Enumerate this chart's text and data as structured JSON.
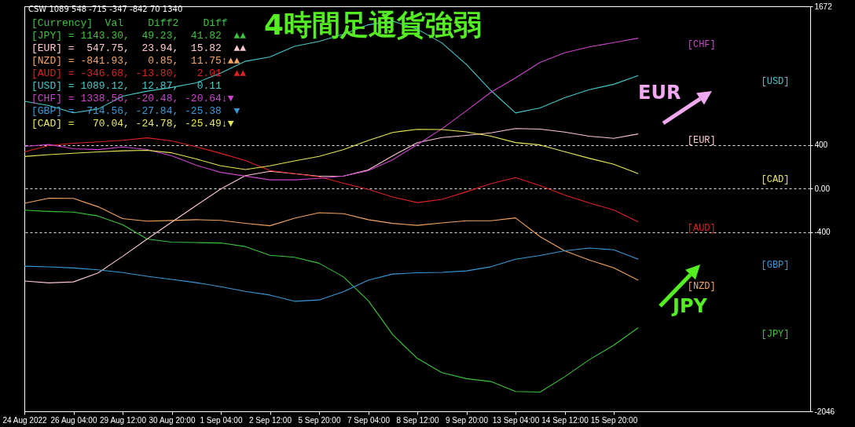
{
  "chart_data": {
    "type": "line",
    "title": "4時間足通貨強弱",
    "categories": [
      "24 Aug 2022",
      null,
      "26 Aug 04:00",
      null,
      "29 Aug 12:00",
      null,
      "30 Aug 20:00",
      null,
      "1 Sep 04:00",
      null,
      "2 Sep 12:00",
      null,
      "5 Sep 20:00",
      null,
      "7 Sep 04:00",
      null,
      "8 Sep 12:00",
      null,
      "9 Sep 20:00",
      null,
      "13 Sep 04:00",
      null,
      "14 Sep 12:00",
      null,
      "15 Sep 20:00",
      null,
      null,
      null,
      null,
      null,
      null,
      null,
      null
    ],
    "ylim": [
      -2046,
      1672
    ],
    "yticks": [
      1672,
      400,
      {
        "value": 0,
        "label": "0.00"
      },
      -400,
      -2046
    ],
    "grid": "y",
    "series": [
      {
        "name": "[JPY]",
        "color": "#3cc43c",
        "values": [
          -200,
          -211,
          -218,
          -253,
          -333,
          -464,
          -493,
          -497,
          -501,
          -534,
          -614,
          -632,
          -687,
          -813,
          -1029,
          -1343,
          -1560,
          -1691,
          -1746,
          -1773,
          -1864,
          -1870,
          -1730,
          -1573,
          -1439,
          -1279,
          null,
          null,
          null,
          null,
          null,
          null,
          null
        ]
      },
      {
        "name": "[EUR]",
        "color": "#ffc8d0",
        "values": [
          -850,
          -867,
          -858,
          -776,
          -624,
          -464,
          -310,
          -156,
          -5,
          117,
          157,
          135,
          112,
          114,
          169,
          300,
          420,
          467,
          487,
          510,
          550,
          544,
          517,
          480,
          460,
          500,
          null,
          null,
          null,
          null,
          null,
          null,
          null
        ]
      },
      {
        "name": "[NZD]",
        "color": "#f4a460",
        "values": [
          -136,
          -90,
          -92,
          -168,
          -277,
          -300,
          -294,
          -287,
          -293,
          -320,
          -343,
          -274,
          -223,
          -232,
          -287,
          -321,
          -339,
          -317,
          -297,
          -297,
          -271,
          -443,
          -572,
          -657,
          -729,
          -843,
          null,
          null,
          null,
          null,
          null,
          null,
          null
        ]
      },
      {
        "name": "[AUD]",
        "color": "#dd2222",
        "values": [
          336,
          393,
          415,
          427,
          442,
          464,
          436,
          382,
          322,
          256,
          164,
          136,
          107,
          47,
          -9,
          -79,
          -130,
          -100,
          -31,
          43,
          100,
          26,
          -61,
          -133,
          -198,
          -307,
          null,
          null,
          null,
          null,
          null,
          null,
          null
        ]
      },
      {
        "name": "[USD]",
        "color": "#48c8c8",
        "values": [
          800,
          760,
          694,
          729,
          847,
          893,
          927,
          970,
          1059,
          1167,
          1207,
          1305,
          1350,
          1416,
          1502,
          1536,
          1462,
          1336,
          1138,
          899,
          693,
          739,
          832,
          906,
          956,
          1036,
          null,
          null,
          null,
          null,
          null,
          null,
          null
        ]
      },
      {
        "name": "[CHF]",
        "color": "#cc44cc",
        "values": [
          386,
          403,
          364,
          356,
          380,
          357,
          300,
          213,
          147,
          113,
          79,
          79,
          92,
          114,
          162,
          264,
          402,
          547,
          713,
          883,
          1014,
          1157,
          1245,
          1299,
          1339,
          1379,
          null,
          null,
          null,
          null,
          null,
          null,
          null
        ]
      },
      {
        "name": "[GBP]",
        "color": "#3a9ad9",
        "values": [
          -714,
          -720,
          -730,
          -747,
          -773,
          -807,
          -836,
          -865,
          -902,
          -945,
          -979,
          -1036,
          -1024,
          -947,
          -843,
          -786,
          -774,
          -771,
          -757,
          -719,
          -650,
          -616,
          -573,
          -547,
          -564,
          -650,
          null,
          null,
          null,
          null,
          null,
          null,
          null
        ]
      },
      {
        "name": "[CAD]",
        "color": "#e8e85a",
        "values": [
          293,
          310,
          323,
          335,
          345,
          350,
          327,
          270,
          207,
          173,
          207,
          253,
          294,
          357,
          440,
          514,
          543,
          541,
          519,
          479,
          421,
          399,
          337,
          277,
          222,
          136,
          null,
          null,
          null,
          null,
          null,
          null,
          null
        ]
      }
    ],
    "annotations": [
      "CSW 1089 548 -715 -347 -842 70 1340",
      "[Currency]  Val    Diff2    Diff",
      "[JPY] = 1143.30,  49.23,  41.82  ▲▲",
      "[EUR] =  547.75,  23.94,  15.82  ▲▲",
      "[NZD] = -841.93,   0.85,  11.75↕▲▲",
      "[AUD] = -346.68, -13.80,   2.01  ▲▲",
      "[USD] = 1089.12,  12.87,   0.11",
      "[CHF] = 1338.56, -20.48, -20.64↓▼",
      "[GBP] = -714.56, -27.84, -25.38  ▼",
      "[CAD] =   70.04, -24.78, -25.49↓▼",
      "EUR",
      "JPY"
    ]
  }
}
